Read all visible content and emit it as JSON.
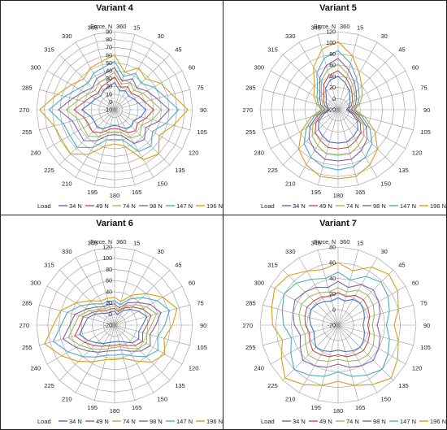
{
  "chart_data": [
    {
      "type": "radar",
      "title": "Variant 4",
      "radial_label": "Force, N",
      "rmin": -10,
      "rmax": 90,
      "rticks": [
        -10,
        0,
        10,
        20,
        30,
        40,
        50,
        60,
        70,
        80,
        90
      ],
      "angles": [
        360,
        15,
        30,
        45,
        60,
        75,
        90,
        105,
        120,
        135,
        150,
        165,
        180,
        195,
        210,
        225,
        240,
        255,
        270,
        285,
        300,
        315,
        330,
        345
      ],
      "legend_title": "Load",
      "series": [
        {
          "name": "34 N",
          "color": "#4472c4",
          "values": [
            25,
            15,
            18,
            15,
            18,
            22,
            30,
            25,
            18,
            20,
            18,
            12,
            10,
            12,
            18,
            22,
            20,
            22,
            32,
            22,
            18,
            15,
            18,
            20
          ]
        },
        {
          "name": "49 N",
          "color": "#c0504d",
          "values": [
            32,
            20,
            24,
            20,
            25,
            30,
            40,
            32,
            24,
            28,
            24,
            16,
            14,
            16,
            24,
            30,
            28,
            30,
            42,
            30,
            24,
            20,
            24,
            26
          ]
        },
        {
          "name": "74 N",
          "color": "#9bbb59",
          "values": [
            38,
            24,
            30,
            25,
            32,
            38,
            50,
            40,
            30,
            36,
            32,
            20,
            18,
            20,
            30,
            38,
            36,
            38,
            52,
            38,
            30,
            25,
            30,
            32
          ]
        },
        {
          "name": "98 N",
          "color": "#8064a2",
          "values": [
            44,
            28,
            36,
            30,
            38,
            46,
            60,
            48,
            36,
            44,
            40,
            24,
            22,
            24,
            36,
            46,
            44,
            46,
            62,
            46,
            36,
            30,
            36,
            38
          ]
        },
        {
          "name": "147 N",
          "color": "#4bacc6",
          "values": [
            52,
            34,
            44,
            38,
            48,
            56,
            72,
            58,
            46,
            56,
            52,
            30,
            28,
            30,
            46,
            58,
            56,
            58,
            74,
            56,
            44,
            38,
            44,
            46
          ]
        },
        {
          "name": "196 N",
          "color": "#d4a017",
          "values": [
            60,
            40,
            52,
            46,
            58,
            66,
            84,
            68,
            56,
            70,
            64,
            38,
            34,
            38,
            56,
            70,
            68,
            70,
            86,
            66,
            54,
            46,
            52,
            54
          ]
        }
      ]
    },
    {
      "type": "radar",
      "title": "Variant 5",
      "radial_label": "Force, N",
      "rmin": -20,
      "rmax": 120,
      "rticks": [
        -20,
        0,
        20,
        40,
        60,
        80,
        100,
        120
      ],
      "angles": [
        360,
        15,
        30,
        45,
        60,
        75,
        90,
        105,
        120,
        135,
        150,
        165,
        180,
        195,
        210,
        225,
        240,
        255,
        270,
        285,
        300,
        315,
        330,
        345
      ],
      "legend_title": "Load",
      "series": [
        {
          "name": "34 N",
          "color": "#4472c4",
          "values": [
            40,
            30,
            20,
            10,
            5,
            0,
            -5,
            5,
            20,
            30,
            35,
            40,
            40,
            40,
            35,
            30,
            20,
            5,
            -5,
            0,
            5,
            10,
            25,
            35
          ]
        },
        {
          "name": "49 N",
          "color": "#c0504d",
          "values": [
            50,
            38,
            26,
            16,
            10,
            4,
            -2,
            10,
            26,
            38,
            44,
            50,
            50,
            50,
            44,
            38,
            26,
            10,
            -2,
            4,
            10,
            16,
            32,
            44
          ]
        },
        {
          "name": "74 N",
          "color": "#9bbb59",
          "values": [
            62,
            46,
            32,
            22,
            14,
            8,
            2,
            14,
            32,
            46,
            54,
            62,
            62,
            62,
            54,
            46,
            32,
            14,
            2,
            8,
            14,
            22,
            40,
            54
          ]
        },
        {
          "name": "98 N",
          "color": "#8064a2",
          "values": [
            72,
            54,
            38,
            26,
            18,
            12,
            4,
            18,
            38,
            54,
            64,
            72,
            72,
            72,
            64,
            54,
            38,
            18,
            4,
            12,
            18,
            26,
            46,
            62
          ]
        },
        {
          "name": "147 N",
          "color": "#4bacc6",
          "values": [
            86,
            66,
            46,
            32,
            24,
            16,
            8,
            24,
            46,
            66,
            78,
            86,
            88,
            86,
            78,
            66,
            46,
            24,
            8,
            16,
            24,
            32,
            56,
            76
          ]
        },
        {
          "name": "196 N",
          "color": "#d4a017",
          "values": [
            102,
            80,
            56,
            40,
            30,
            20,
            10,
            30,
            56,
            80,
            94,
            104,
            104,
            104,
            94,
            80,
            56,
            30,
            10,
            20,
            30,
            40,
            68,
            92
          ]
        }
      ]
    },
    {
      "type": "radar",
      "title": "Variant 6",
      "radial_label": "Force, N",
      "rmin": -20,
      "rmax": 120,
      "rticks": [
        -20,
        0,
        20,
        40,
        60,
        80,
        100,
        120
      ],
      "angles": [
        360,
        15,
        30,
        45,
        60,
        75,
        90,
        105,
        120,
        135,
        150,
        165,
        180,
        195,
        210,
        225,
        240,
        255,
        270,
        285,
        300,
        315,
        330,
        345
      ],
      "legend_title": "Load",
      "series": [
        {
          "name": "34 N",
          "color": "#4472c4",
          "values": [
            5,
            0,
            10,
            20,
            30,
            40,
            30,
            25,
            30,
            25,
            15,
            10,
            10,
            12,
            18,
            25,
            35,
            45,
            35,
            30,
            20,
            10,
            5,
            5
          ]
        },
        {
          "name": "49 N",
          "color": "#c0504d",
          "values": [
            10,
            5,
            16,
            26,
            38,
            48,
            38,
            32,
            38,
            32,
            22,
            16,
            16,
            18,
            24,
            32,
            42,
            54,
            42,
            38,
            26,
            16,
            10,
            10
          ]
        },
        {
          "name": "74 N",
          "color": "#9bbb59",
          "values": [
            14,
            8,
            20,
            32,
            46,
            58,
            46,
            40,
            46,
            40,
            28,
            20,
            20,
            24,
            30,
            40,
            52,
            66,
            52,
            46,
            32,
            20,
            14,
            14
          ]
        },
        {
          "name": "98 N",
          "color": "#8064a2",
          "values": [
            18,
            12,
            26,
            38,
            54,
            66,
            54,
            46,
            54,
            46,
            34,
            26,
            26,
            28,
            36,
            46,
            60,
            76,
            60,
            54,
            38,
            26,
            18,
            18
          ]
        },
        {
          "name": "147 N",
          "color": "#4bacc6",
          "values": [
            24,
            18,
            34,
            50,
            68,
            82,
            70,
            60,
            70,
            60,
            44,
            34,
            34,
            36,
            46,
            60,
            76,
            94,
            76,
            68,
            50,
            34,
            24,
            24
          ]
        },
        {
          "name": "196 N",
          "color": "#d4a017",
          "values": [
            30,
            24,
            42,
            60,
            80,
            96,
            84,
            72,
            84,
            74,
            54,
            42,
            42,
            44,
            56,
            72,
            90,
            110,
            90,
            80,
            60,
            42,
            30,
            30
          ]
        }
      ]
    },
    {
      "type": "radar",
      "title": "Variant 7",
      "radial_label": "Force, N",
      "rmin": -20,
      "rmax": 80,
      "rticks": [
        -20,
        0,
        20,
        40,
        60,
        80
      ],
      "angles": [
        360,
        15,
        30,
        45,
        60,
        75,
        90,
        105,
        120,
        135,
        150,
        165,
        180,
        195,
        210,
        225,
        240,
        255,
        270,
        285,
        300,
        315,
        330,
        345
      ],
      "legend_title": "Load",
      "series": [
        {
          "name": "34 N",
          "color": "#4472c4",
          "values": [
            15,
            12,
            18,
            20,
            18,
            15,
            12,
            15,
            18,
            20,
            18,
            15,
            12,
            15,
            18,
            20,
            15,
            12,
            15,
            18,
            20,
            18,
            15,
            12
          ]
        },
        {
          "name": "49 N",
          "color": "#c0504d",
          "values": [
            22,
            18,
            24,
            26,
            24,
            22,
            18,
            22,
            24,
            26,
            24,
            22,
            18,
            22,
            24,
            26,
            22,
            18,
            22,
            24,
            26,
            24,
            22,
            18
          ]
        },
        {
          "name": "74 N",
          "color": "#9bbb59",
          "values": [
            28,
            24,
            32,
            34,
            32,
            28,
            24,
            28,
            32,
            34,
            32,
            28,
            24,
            28,
            32,
            34,
            28,
            24,
            28,
            32,
            34,
            32,
            28,
            24
          ]
        },
        {
          "name": "98 N",
          "color": "#8064a2",
          "values": [
            36,
            30,
            40,
            44,
            40,
            36,
            30,
            36,
            40,
            44,
            40,
            36,
            30,
            36,
            40,
            44,
            36,
            30,
            36,
            40,
            44,
            40,
            36,
            30
          ]
        },
        {
          "name": "147 N",
          "color": "#4bacc6",
          "values": [
            48,
            40,
            52,
            58,
            54,
            48,
            42,
            48,
            54,
            60,
            54,
            48,
            40,
            48,
            54,
            60,
            50,
            42,
            50,
            54,
            60,
            56,
            48,
            42
          ]
        },
        {
          "name": "196 N",
          "color": "#d4a017",
          "values": [
            60,
            52,
            66,
            72,
            68,
            60,
            52,
            60,
            68,
            76,
            68,
            60,
            52,
            60,
            68,
            76,
            64,
            54,
            64,
            68,
            74,
            70,
            60,
            54
          ]
        }
      ]
    }
  ]
}
